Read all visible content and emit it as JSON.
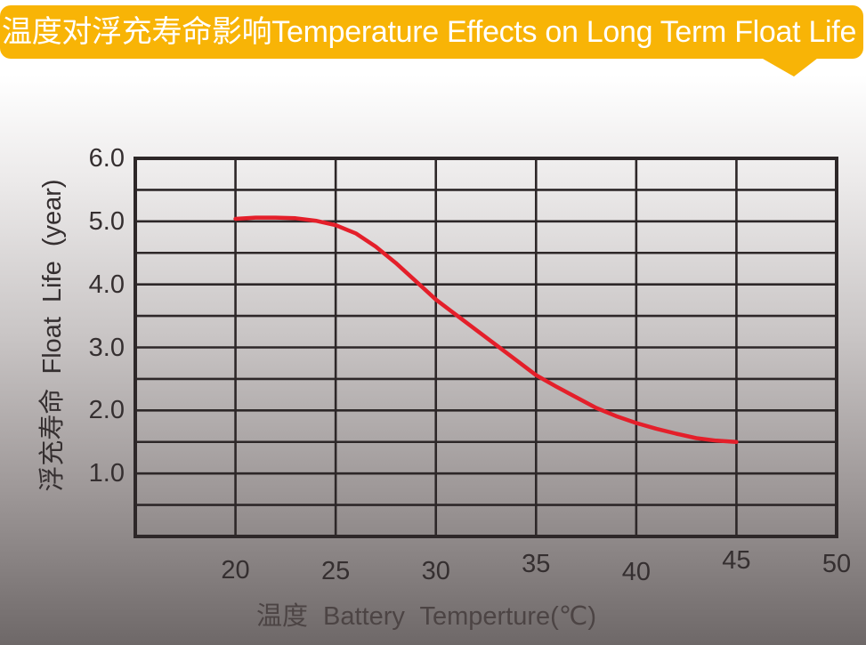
{
  "banner": {
    "title": "温度对浮充寿命影响Temperature Effects on Long Term Float Life",
    "bg_color": "#F8B406",
    "text_color": "#FFFFFF"
  },
  "chart_data": {
    "type": "line",
    "title_zh": "温度对浮充寿命影响",
    "title_en": "Temperature Effects on Long Term Float Life",
    "xlabel": "温度  Battery  Temperture(℃)",
    "ylabel": "浮充寿命  Float Life (year)",
    "xlim": [
      15,
      50
    ],
    "ylim": [
      0,
      6
    ],
    "x_grid_step": 5,
    "y_grid_step": 0.5,
    "grid": true,
    "legend": "none",
    "line_color": "#E41F2A",
    "grid_color": "#2d2728",
    "x_ticks": [
      {
        "label": "20",
        "value": 20
      },
      {
        "label": "25",
        "value": 25
      },
      {
        "label": "30",
        "value": 30
      },
      {
        "label": "35",
        "value": 35
      },
      {
        "label": "40",
        "value": 40
      },
      {
        "label": "45",
        "value": 45
      },
      {
        "label": "50",
        "value": 50
      }
    ],
    "y_ticks": [
      {
        "label": "6.0",
        "value": 6
      },
      {
        "label": "5.0",
        "value": 5
      },
      {
        "label": "4.0",
        "value": 4
      },
      {
        "label": "3.0",
        "value": 3
      },
      {
        "label": "2.0",
        "value": 2
      },
      {
        "label": "1.0",
        "value": 1
      }
    ],
    "series": [
      {
        "name": "float-life-vs-temperature",
        "x": [
          20,
          21,
          22,
          23,
          24,
          25,
          26,
          27,
          28,
          29,
          30,
          31,
          32,
          33,
          34,
          35,
          36,
          37,
          38,
          39,
          40,
          41,
          42,
          43,
          44,
          45
        ],
        "y": [
          5.04,
          5.06,
          5.06,
          5.05,
          5.01,
          4.94,
          4.81,
          4.6,
          4.34,
          4.05,
          3.76,
          3.52,
          3.28,
          3.04,
          2.8,
          2.56,
          2.38,
          2.21,
          2.04,
          1.91,
          1.8,
          1.71,
          1.63,
          1.56,
          1.52,
          1.5
        ]
      }
    ]
  }
}
